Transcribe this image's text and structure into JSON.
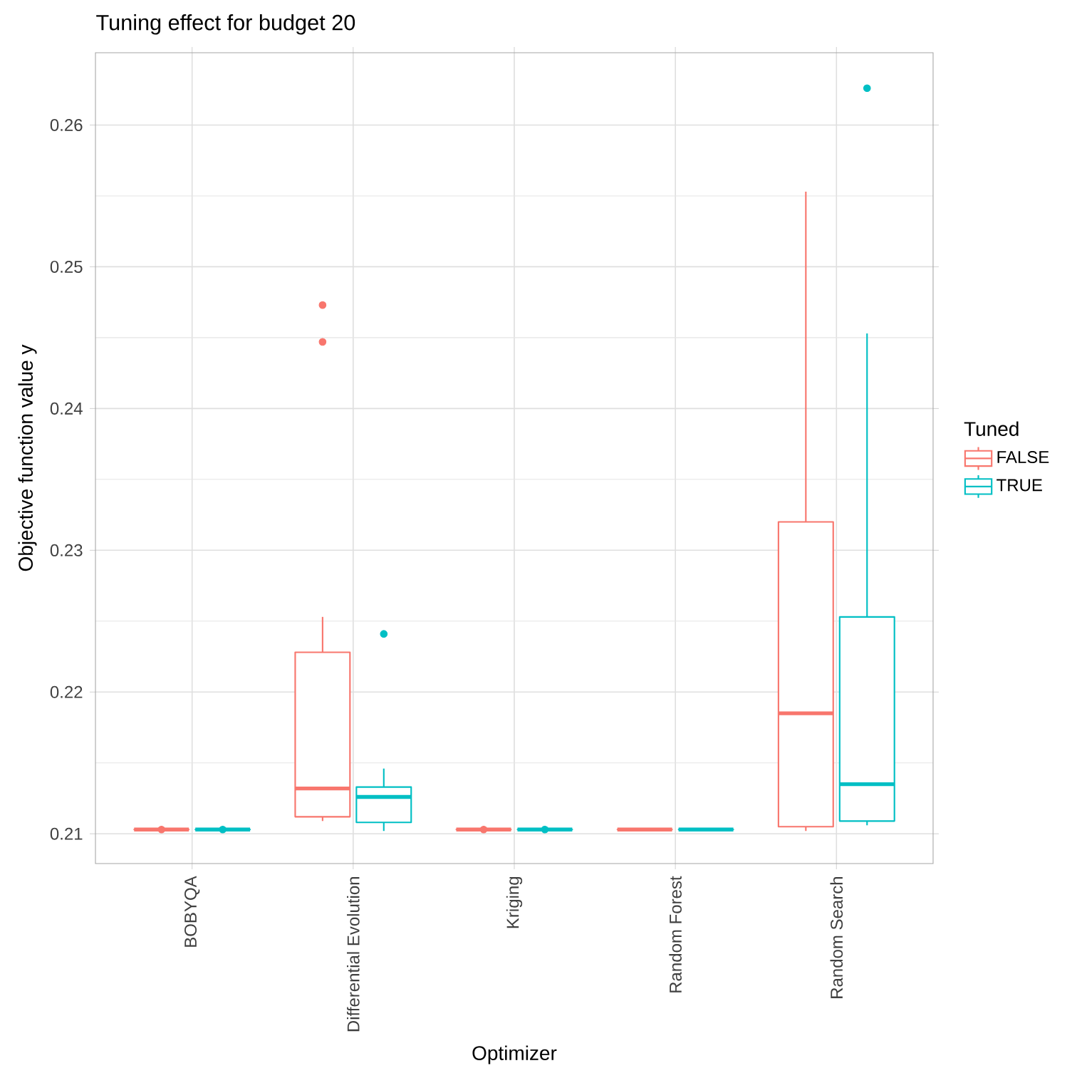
{
  "chart_data": {
    "type": "box",
    "title": "Tuning effect for budget 20",
    "xlabel": "Optimizer",
    "ylabel": "Objective function value y",
    "legend_title": "Tuned",
    "legend": "right",
    "grid": true,
    "categories": [
      "BOBYQA",
      "Differential Evolution",
      "Kriging",
      "Random Forest",
      "Random Search"
    ],
    "ylim": [
      0.2079,
      0.2651
    ],
    "yticks": [
      0.21,
      0.22,
      0.23,
      0.24,
      0.25,
      0.26
    ],
    "series": [
      {
        "name": "FALSE",
        "color": "#f8766d",
        "boxes": [
          {
            "low": 0.2103,
            "q1": 0.2103,
            "median": 0.2103,
            "q3": 0.2103,
            "high": 0.2103,
            "outliers": [
              0.2103
            ]
          },
          {
            "low": 0.2109,
            "q1": 0.2112,
            "median": 0.2132,
            "q3": 0.2228,
            "high": 0.2253,
            "outliers": [
              0.2473,
              0.2447
            ]
          },
          {
            "low": 0.2103,
            "q1": 0.2103,
            "median": 0.2103,
            "q3": 0.2103,
            "high": 0.2103,
            "outliers": [
              0.2103
            ]
          },
          {
            "low": 0.2103,
            "q1": 0.2103,
            "median": 0.2103,
            "q3": 0.2103,
            "high": 0.2103
          },
          {
            "low": 0.2102,
            "q1": 0.2105,
            "median": 0.2185,
            "q3": 0.232,
            "high": 0.2553
          }
        ]
      },
      {
        "name": "TRUE",
        "color": "#00bfc4",
        "boxes": [
          {
            "low": 0.2103,
            "q1": 0.2103,
            "median": 0.2103,
            "q3": 0.2103,
            "high": 0.2103,
            "outliers": [
              0.2103
            ]
          },
          {
            "low": 0.2102,
            "q1": 0.2108,
            "median": 0.2126,
            "q3": 0.2133,
            "high": 0.2146,
            "outliers": [
              0.2241
            ]
          },
          {
            "low": 0.2103,
            "q1": 0.2103,
            "median": 0.2103,
            "q3": 0.2103,
            "high": 0.2103,
            "outliers": [
              0.2103
            ]
          },
          {
            "low": 0.2103,
            "q1": 0.2103,
            "median": 0.2103,
            "q3": 0.2103,
            "high": 0.2103
          },
          {
            "low": 0.2106,
            "q1": 0.2109,
            "median": 0.2135,
            "q3": 0.2253,
            "high": 0.2453,
            "outliers": [
              0.2626
            ]
          }
        ]
      }
    ]
  }
}
